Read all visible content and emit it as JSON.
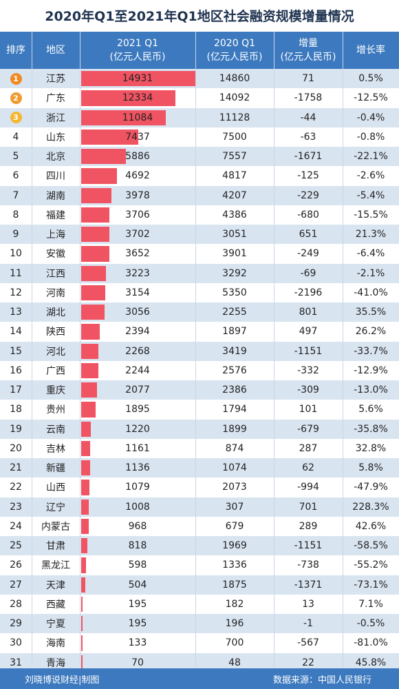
{
  "title": "2020年Q1至2021年Q1地区社会融资规模增量情况",
  "headers": {
    "rank": "排序",
    "region": "地区",
    "y2021_line1": "2021 Q1",
    "y2021_line2": "(亿元人民币)",
    "y2020_line1": "2020 Q1",
    "y2020_line2": "(亿元人民币)",
    "increase_line1": "增量",
    "increase_line2": "(亿元人民币)",
    "growth": "增长率"
  },
  "colors": {
    "header_bg": "#3c79bf",
    "bar": "#f05361",
    "stripe": "#d9e4f1",
    "medal_gold": "#f08a24"
  },
  "footer": {
    "left": "刘晓博说财经|制图",
    "right": "数据来源：中国人民银行"
  },
  "chart_data": {
    "type": "table",
    "bar_column": "2021 Q1",
    "bar_max": 14931,
    "rows": [
      {
        "rank": "1",
        "region": "江苏",
        "v2021": 14931,
        "v2020": 14860,
        "increase": 71,
        "growth": "0.5%"
      },
      {
        "rank": "2",
        "region": "广东",
        "v2021": 12334,
        "v2020": 14092,
        "increase": -1758,
        "growth": "-12.5%"
      },
      {
        "rank": "3",
        "region": "浙江",
        "v2021": 11084,
        "v2020": 11128,
        "increase": -44,
        "growth": "-0.4%"
      },
      {
        "rank": "4",
        "region": "山东",
        "v2021": 7437,
        "v2020": 7500,
        "increase": -63,
        "growth": "-0.8%"
      },
      {
        "rank": "5",
        "region": "北京",
        "v2021": 5886,
        "v2020": 7557,
        "increase": -1671,
        "growth": "-22.1%"
      },
      {
        "rank": "6",
        "region": "四川",
        "v2021": 4692,
        "v2020": 4817,
        "increase": -125,
        "growth": "-2.6%"
      },
      {
        "rank": "7",
        "region": "湖南",
        "v2021": 3978,
        "v2020": 4207,
        "increase": -229,
        "growth": "-5.4%"
      },
      {
        "rank": "8",
        "region": "福建",
        "v2021": 3706,
        "v2020": 4386,
        "increase": -680,
        "growth": "-15.5%"
      },
      {
        "rank": "9",
        "region": "上海",
        "v2021": 3702,
        "v2020": 3051,
        "increase": 651,
        "growth": "21.3%"
      },
      {
        "rank": "10",
        "region": "安徽",
        "v2021": 3652,
        "v2020": 3901,
        "increase": -249,
        "growth": "-6.4%"
      },
      {
        "rank": "11",
        "region": "江西",
        "v2021": 3223,
        "v2020": 3292,
        "increase": -69,
        "growth": "-2.1%"
      },
      {
        "rank": "12",
        "region": "河南",
        "v2021": 3154,
        "v2020": 5350,
        "increase": -2196,
        "growth": "-41.0%"
      },
      {
        "rank": "13",
        "region": "湖北",
        "v2021": 3056,
        "v2020": 2255,
        "increase": 801,
        "growth": "35.5%"
      },
      {
        "rank": "14",
        "region": "陕西",
        "v2021": 2394,
        "v2020": 1897,
        "increase": 497,
        "growth": "26.2%"
      },
      {
        "rank": "15",
        "region": "河北",
        "v2021": 2268,
        "v2020": 3419,
        "increase": -1151,
        "growth": "-33.7%"
      },
      {
        "rank": "16",
        "region": "广西",
        "v2021": 2244,
        "v2020": 2576,
        "increase": -332,
        "growth": "-12.9%"
      },
      {
        "rank": "17",
        "region": "重庆",
        "v2021": 2077,
        "v2020": 2386,
        "increase": -309,
        "growth": "-13.0%"
      },
      {
        "rank": "18",
        "region": "贵州",
        "v2021": 1895,
        "v2020": 1794,
        "increase": 101,
        "growth": "5.6%"
      },
      {
        "rank": "19",
        "region": "云南",
        "v2021": 1220,
        "v2020": 1899,
        "increase": -679,
        "growth": "-35.8%"
      },
      {
        "rank": "20",
        "region": "吉林",
        "v2021": 1161,
        "v2020": 874,
        "increase": 287,
        "growth": "32.8%"
      },
      {
        "rank": "21",
        "region": "新疆",
        "v2021": 1136,
        "v2020": 1074,
        "increase": 62,
        "growth": "5.8%"
      },
      {
        "rank": "22",
        "region": "山西",
        "v2021": 1079,
        "v2020": 2073,
        "increase": -994,
        "growth": "-47.9%"
      },
      {
        "rank": "23",
        "region": "辽宁",
        "v2021": 1008,
        "v2020": 307,
        "increase": 701,
        "growth": "228.3%"
      },
      {
        "rank": "24",
        "region": "内蒙古",
        "v2021": 968,
        "v2020": 679,
        "increase": 289,
        "growth": "42.6%"
      },
      {
        "rank": "25",
        "region": "甘肃",
        "v2021": 818,
        "v2020": 1969,
        "increase": -1151,
        "growth": "-58.5%"
      },
      {
        "rank": "26",
        "region": "黑龙江",
        "v2021": 598,
        "v2020": 1336,
        "increase": -738,
        "growth": "-55.2%"
      },
      {
        "rank": "27",
        "region": "天津",
        "v2021": 504,
        "v2020": 1875,
        "increase": -1371,
        "growth": "-73.1%"
      },
      {
        "rank": "28",
        "region": "西藏",
        "v2021": 195,
        "v2020": 182,
        "increase": 13,
        "growth": "7.1%"
      },
      {
        "rank": "29",
        "region": "宁夏",
        "v2021": 195,
        "v2020": 196,
        "increase": -1,
        "growth": "-0.5%"
      },
      {
        "rank": "30",
        "region": "海南",
        "v2021": 133,
        "v2020": 700,
        "increase": -567,
        "growth": "-81.0%"
      },
      {
        "rank": "31",
        "region": "青海",
        "v2021": 70,
        "v2020": 48,
        "increase": 22,
        "growth": "45.8%"
      }
    ]
  }
}
